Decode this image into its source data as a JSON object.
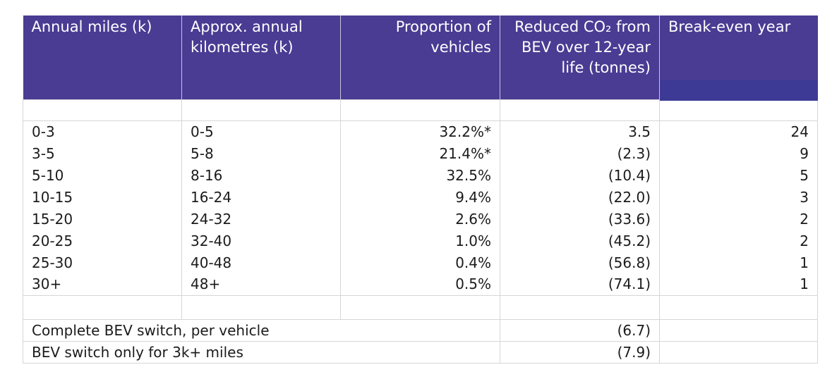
{
  "table": {
    "headers": [
      "Annual miles (k)",
      "Approx. annual kilometres (k)",
      "Proportion of vehicles",
      "Reduced CO₂ from BEV over 12-year life (tonnes)",
      "Break-even year"
    ],
    "rows": [
      [
        "0-3",
        "0-5",
        "32.2%*",
        "3.5",
        "24"
      ],
      [
        "3-5",
        "5-8",
        "21.4%*",
        "(2.3)",
        "9"
      ],
      [
        "5-10",
        "8-16",
        "32.5%",
        "(10.4)",
        "5"
      ],
      [
        "10-15",
        "16-24",
        "9.4%",
        "(22.0)",
        "3"
      ],
      [
        "15-20",
        "24-32",
        "2.6%",
        "(33.6)",
        "2"
      ],
      [
        "20-25",
        "32-40",
        "1.0%",
        "(45.2)",
        "2"
      ],
      [
        "25-30",
        "40-48",
        "0.4%",
        "(56.8)",
        "1"
      ],
      [
        "30+",
        "48+",
        "0.5%",
        "(74.1)",
        "1"
      ]
    ],
    "summary": [
      {
        "label": "Complete BEV switch, per vehicle",
        "value": "(6.7)"
      },
      {
        "label": "BEV switch only for 3k+ miles",
        "value": "(7.9)"
      }
    ]
  }
}
